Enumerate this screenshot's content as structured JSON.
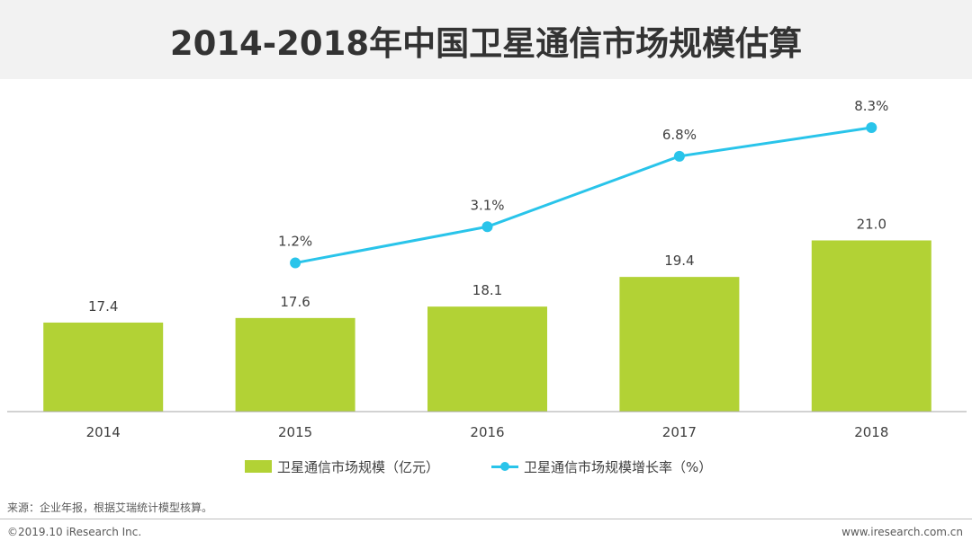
{
  "title": "2014-2018年中国卫星通信市场规模估算",
  "colors": {
    "bar": "#b2d235",
    "line": "#29c4ea",
    "axis": "#a6a6a6",
    "text": "#404040"
  },
  "chart_data": {
    "type": "bar+line",
    "title": "2014-2018年中国卫星通信市场规模估算",
    "categories": [
      "2014",
      "2015",
      "2016",
      "2017",
      "2018"
    ],
    "series": [
      {
        "name": "卫星通信市场规模（亿元）",
        "type": "bar",
        "values": [
          17.4,
          17.6,
          18.1,
          19.4,
          21.0
        ],
        "labels": [
          "17.4",
          "17.6",
          "18.1",
          "19.4",
          "21.0"
        ]
      },
      {
        "name": "卫星通信市场规模增长率（%）",
        "type": "line",
        "values": [
          null,
          1.2,
          3.1,
          6.8,
          8.3
        ],
        "labels": [
          "",
          "1.2%",
          "3.1%",
          "6.8%",
          "8.3%"
        ]
      }
    ]
  },
  "legend": {
    "bar_label": "卫星通信市场规模（亿元）",
    "line_label": "卫星通信市场规模增长率（%）"
  },
  "source": "来源：企业年报，根据艾瑞统计模型核算。",
  "copyright": "©2019.10 iResearch Inc.",
  "website": "www.iresearch.com.cn"
}
